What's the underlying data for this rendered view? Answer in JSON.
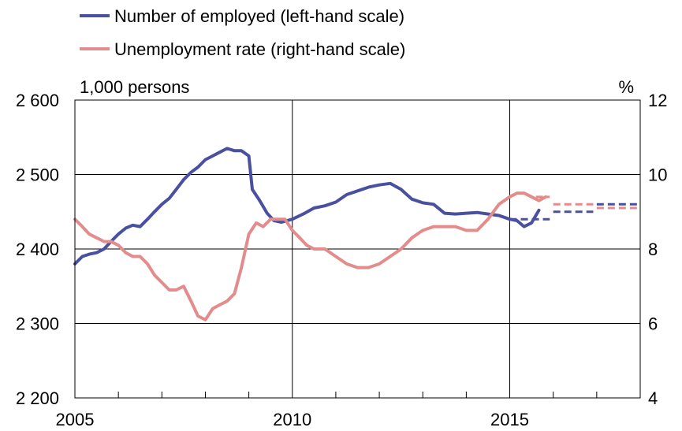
{
  "chart_data": {
    "type": "line",
    "legend": {
      "placement": "top-left",
      "items": [
        {
          "label": "Number of employed (left-hand scale)",
          "color": "#4a50a0"
        },
        {
          "label": "Unemployment rate (right-hand scale)",
          "color": "#e38c8c"
        }
      ]
    },
    "left_axis": {
      "unit": "1,000 persons",
      "ylim": [
        2200,
        2600
      ],
      "ticks": [
        2600,
        2500,
        2400,
        2300,
        2200
      ],
      "tick_labels": [
        "2 600",
        "2 500",
        "2 400",
        "2 300",
        "2 200"
      ]
    },
    "right_axis": {
      "unit": "%",
      "ylim": [
        4,
        12
      ],
      "ticks": [
        12,
        10,
        8,
        6,
        4
      ],
      "tick_labels": [
        "12",
        "10",
        "8",
        "6",
        "4"
      ]
    },
    "x_axis": {
      "xlim": [
        2005.0,
        2018.0
      ],
      "ticks": [
        2005,
        2010,
        2015
      ],
      "tick_labels": [
        "2005",
        "2010",
        "2015"
      ],
      "minor_ticks": [
        2006,
        2007,
        2008,
        2009,
        2011,
        2012,
        2013,
        2014,
        2016,
        2017
      ],
      "major_gridlines": [
        2010,
        2015
      ]
    },
    "grid": {
      "horizontal": true,
      "vertical_major": true
    },
    "series": [
      {
        "name": "Number of employed (left-hand scale)",
        "axis": "left",
        "color": "#4a50a0",
        "x": [
          2005.0,
          2005.17,
          2005.33,
          2005.5,
          2005.67,
          2005.83,
          2006.0,
          2006.17,
          2006.33,
          2006.5,
          2006.67,
          2006.83,
          2007.0,
          2007.17,
          2007.33,
          2007.5,
          2007.67,
          2007.83,
          2008.0,
          2008.17,
          2008.33,
          2008.5,
          2008.67,
          2008.83,
          2009.0,
          2009.08,
          2009.25,
          2009.42,
          2009.58,
          2009.75,
          2010.0,
          2010.25,
          2010.5,
          2010.75,
          2011.0,
          2011.25,
          2011.5,
          2011.75,
          2012.0,
          2012.25,
          2012.5,
          2012.75,
          2013.0,
          2013.25,
          2013.5,
          2013.75,
          2014.0,
          2014.25,
          2014.5,
          2014.75,
          2015.0,
          2015.17,
          2015.33,
          2015.5,
          2015.67
        ],
        "y": [
          2380,
          2390,
          2393,
          2395,
          2400,
          2410,
          2420,
          2428,
          2432,
          2430,
          2440,
          2450,
          2460,
          2468,
          2480,
          2493,
          2503,
          2510,
          2520,
          2525,
          2530,
          2535,
          2532,
          2532,
          2525,
          2480,
          2465,
          2448,
          2438,
          2436,
          2440,
          2447,
          2455,
          2458,
          2463,
          2473,
          2478,
          2483,
          2486,
          2488,
          2480,
          2467,
          2462,
          2460,
          2448,
          2447,
          2448,
          2449,
          2447,
          2445,
          2440,
          2438,
          2430,
          2435,
          2452
        ]
      },
      {
        "name": "Unemployment rate (right-hand scale)",
        "axis": "right",
        "color": "#e38c8c",
        "x": [
          2005.0,
          2005.17,
          2005.33,
          2005.5,
          2005.67,
          2005.83,
          2006.0,
          2006.17,
          2006.33,
          2006.5,
          2006.67,
          2006.83,
          2007.0,
          2007.17,
          2007.33,
          2007.5,
          2007.67,
          2007.83,
          2008.0,
          2008.17,
          2008.33,
          2008.5,
          2008.67,
          2008.83,
          2009.0,
          2009.17,
          2009.33,
          2009.5,
          2009.67,
          2009.83,
          2010.0,
          2010.17,
          2010.33,
          2010.5,
          2010.75,
          2011.0,
          2011.25,
          2011.5,
          2011.75,
          2012.0,
          2012.25,
          2012.5,
          2012.75,
          2013.0,
          2013.25,
          2013.5,
          2013.75,
          2014.0,
          2014.25,
          2014.5,
          2014.75,
          2015.0,
          2015.17,
          2015.33,
          2015.5,
          2015.67,
          2015.83
        ],
        "y": [
          8.8,
          8.6,
          8.4,
          8.3,
          8.2,
          8.2,
          8.1,
          7.9,
          7.8,
          7.8,
          7.6,
          7.3,
          7.1,
          6.9,
          6.9,
          7.0,
          6.6,
          6.2,
          6.1,
          6.4,
          6.5,
          6.6,
          6.8,
          7.5,
          8.4,
          8.7,
          8.6,
          8.8,
          8.8,
          8.8,
          8.5,
          8.3,
          8.1,
          8.0,
          8.0,
          7.8,
          7.6,
          7.5,
          7.5,
          7.6,
          7.8,
          8.0,
          8.3,
          8.5,
          8.6,
          8.6,
          8.6,
          8.5,
          8.5,
          8.8,
          9.2,
          9.4,
          9.5,
          9.5,
          9.4,
          9.3,
          9.4
        ]
      }
    ],
    "forecasts": [
      {
        "series": "Number of employed (left-hand scale)",
        "axis": "left",
        "color": "#4a50a0",
        "x": [
          2015.0,
          2015.92
        ],
        "y": [
          2440,
          2440
        ]
      },
      {
        "series": "Number of employed (left-hand scale)",
        "axis": "left",
        "color": "#4a50a0",
        "x": [
          2016.0,
          2016.92
        ],
        "y": [
          2450,
          2450
        ]
      },
      {
        "series": "Number of employed (left-hand scale)",
        "axis": "left",
        "color": "#4a50a0",
        "x": [
          2017.0,
          2018.0
        ],
        "y": [
          2460,
          2460
        ]
      },
      {
        "series": "Unemployment rate (right-hand scale)",
        "axis": "right",
        "color": "#e38c8c",
        "x": [
          2015.6,
          2015.92
        ],
        "y": [
          9.4,
          9.4
        ]
      },
      {
        "series": "Unemployment rate (right-hand scale)",
        "axis": "right",
        "color": "#e38c8c",
        "x": [
          2016.0,
          2016.92
        ],
        "y": [
          9.2,
          9.2
        ]
      },
      {
        "series": "Unemployment rate (right-hand scale)",
        "axis": "right",
        "color": "#e38c8c",
        "x": [
          2017.0,
          2018.0
        ],
        "y": [
          9.1,
          9.1
        ]
      }
    ]
  }
}
